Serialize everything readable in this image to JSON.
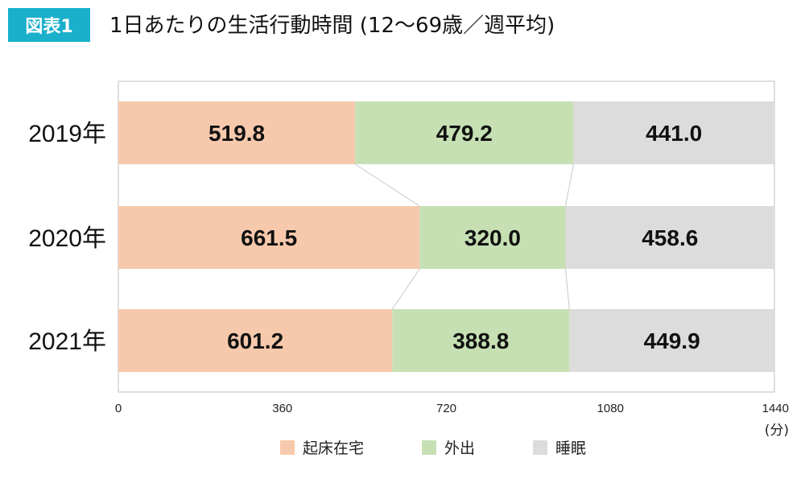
{
  "badge": "図表1",
  "title": "1日あたりの生活行動時間 (12～69歳／週平均)",
  "unit_label": "(分)",
  "colors": {
    "home": "#f7c9ac",
    "out": "#c6e0b4",
    "sleep": "#dcdcdc"
  },
  "chart_data": {
    "type": "bar",
    "orientation": "horizontal",
    "stacked": true,
    "categories": [
      "2019年",
      "2020年",
      "2021年"
    ],
    "series": [
      {
        "name": "起床在宅",
        "values": [
          519.8,
          661.5,
          601.2
        ]
      },
      {
        "name": "外出",
        "values": [
          479.2,
          320.0,
          388.8
        ]
      },
      {
        "name": "睡眠",
        "values": [
          441.0,
          458.6,
          449.9
        ]
      }
    ],
    "value_labels": [
      [
        "519.8",
        "661.5",
        "601.2"
      ],
      [
        "479.2",
        "320.0",
        "388.8"
      ],
      [
        "441.0",
        "458.6",
        "449.9"
      ]
    ],
    "xlim": [
      0,
      1440
    ],
    "xticks": [
      0,
      360,
      720,
      1080,
      1440
    ],
    "xtick_labels": [
      "0",
      "360",
      "720",
      "1080",
      "1440"
    ],
    "legend_position": "bottom",
    "grid": false
  }
}
